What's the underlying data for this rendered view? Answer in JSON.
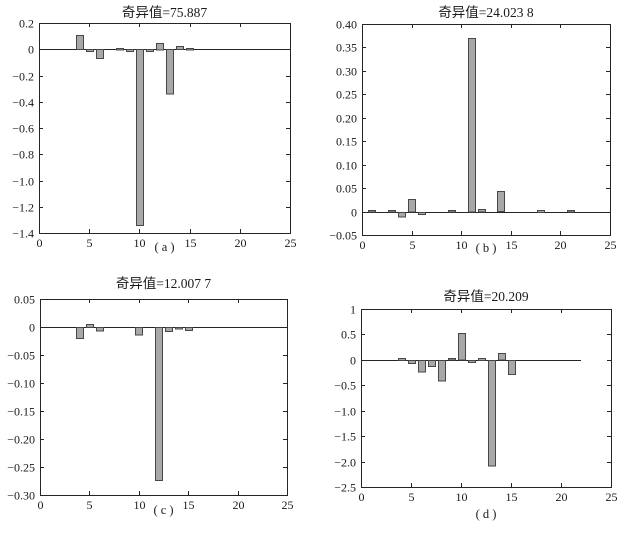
{
  "figure": {
    "kind": "2x2 bar subplot figure",
    "background": "#ffffff",
    "bar_fill": "#a8a8a8",
    "bar_stroke": "#474747",
    "axis_color": "#252525",
    "text_color": "#1a1a1a"
  },
  "chart_data": [
    {
      "id": "a",
      "type": "bar",
      "title": "奇异值=75.887",
      "caption": "( a )",
      "xlim": [
        0,
        25
      ],
      "ylim": [
        -1.4,
        0.2
      ],
      "xticks": [
        0,
        5,
        10,
        15,
        20,
        25
      ],
      "xtick_labels": [
        "0",
        "5",
        "10",
        "15",
        "20",
        "25"
      ],
      "yticks": [
        0.2,
        0,
        -0.2,
        -0.4,
        -0.6,
        -0.8,
        -1.0,
        -1.2,
        -1.4
      ],
      "ytick_labels": [
        "0.2",
        "0",
        "−0.2",
        "−0.4",
        "−0.6",
        "−0.8",
        "−1.0",
        "−1.2",
        "−1.4"
      ],
      "baseline_span": [
        0,
        25
      ],
      "bar_width": 0.7,
      "grid": false,
      "legend": null,
      "bars": [
        {
          "x": 4,
          "y": 0.105
        },
        {
          "x": 5,
          "y": -0.015
        },
        {
          "x": 6,
          "y": -0.07
        },
        {
          "x": 8,
          "y": 0.012
        },
        {
          "x": 9,
          "y": -0.015
        },
        {
          "x": 10,
          "y": -1.34
        },
        {
          "x": 11,
          "y": -0.015
        },
        {
          "x": 12,
          "y": 0.05
        },
        {
          "x": 13,
          "y": -0.34
        },
        {
          "x": 14,
          "y": 0.022
        },
        {
          "x": 15,
          "y": 0.012
        }
      ]
    },
    {
      "id": "b",
      "type": "bar",
      "title": "奇异值=24.023 8",
      "caption": "( b )",
      "xlim": [
        0,
        25
      ],
      "ylim": [
        -0.05,
        0.4
      ],
      "xticks": [
        0,
        5,
        10,
        15,
        20,
        25
      ],
      "xtick_labels": [
        "0",
        "5",
        "10",
        "15",
        "20",
        "25"
      ],
      "yticks": [
        0.4,
        0.35,
        0.3,
        0.25,
        0.2,
        0.15,
        0.1,
        0.05,
        0,
        -0.05
      ],
      "ytick_labels": [
        "0.40",
        "0.35",
        "0.30",
        "0.25",
        "0.20",
        "0.15",
        "0.10",
        "0.05",
        "0",
        "−0.05"
      ],
      "baseline_span": [
        0,
        25
      ],
      "bar_width": 0.7,
      "grid": false,
      "legend": null,
      "bars": [
        {
          "x": 1,
          "y": 0.003
        },
        {
          "x": 3,
          "y": 0.003
        },
        {
          "x": 4,
          "y": -0.01
        },
        {
          "x": 5,
          "y": 0.027
        },
        {
          "x": 6,
          "y": -0.004
        },
        {
          "x": 9,
          "y": 0.003
        },
        {
          "x": 11,
          "y": 0.37
        },
        {
          "x": 12,
          "y": 0.005
        },
        {
          "x": 14,
          "y": 0.043
        },
        {
          "x": 18,
          "y": 0.004
        },
        {
          "x": 21,
          "y": 0.003
        }
      ]
    },
    {
      "id": "c",
      "type": "bar",
      "title": "奇异值=12.007 7",
      "caption": "( c )",
      "xlim": [
        0,
        25
      ],
      "ylim": [
        -0.3,
        0.05
      ],
      "xticks": [
        0,
        5,
        10,
        15,
        20,
        25
      ],
      "xtick_labels": [
        "0",
        "5",
        "10",
        "15",
        "20",
        "25"
      ],
      "yticks": [
        0.05,
        0,
        -0.05,
        -0.1,
        -0.15,
        -0.2,
        -0.25,
        -0.3
      ],
      "ytick_labels": [
        "0.05",
        "0",
        "−0.05",
        "−0.10",
        "−0.15",
        "−0.20",
        "−0.25",
        "−0.30"
      ],
      "baseline_span": [
        0,
        25
      ],
      "bar_width": 0.7,
      "grid": false,
      "legend": null,
      "bars": [
        {
          "x": 4,
          "y": -0.02
        },
        {
          "x": 5,
          "y": 0.005
        },
        {
          "x": 6,
          "y": -0.006
        },
        {
          "x": 10,
          "y": -0.013
        },
        {
          "x": 12,
          "y": -0.273
        },
        {
          "x": 13,
          "y": -0.007
        },
        {
          "x": 14,
          "y": -0.003
        },
        {
          "x": 15,
          "y": -0.005
        }
      ]
    },
    {
      "id": "d",
      "type": "bar",
      "title": "奇异值=20.209",
      "caption": "( d )",
      "xlim": [
        0,
        25
      ],
      "ylim": [
        -2.5,
        1
      ],
      "xticks": [
        0,
        5,
        10,
        15,
        20,
        25
      ],
      "xtick_labels": [
        "0",
        "5",
        "10",
        "15",
        "20",
        "25"
      ],
      "yticks": [
        1,
        0.5,
        0,
        -0.5,
        -1.0,
        -1.5,
        -2.0,
        -2.5
      ],
      "ytick_labels": [
        "1",
        "0.5",
        "0",
        "−0.5",
        "−1.0",
        "−1.5",
        "−2.0",
        "−2.5"
      ],
      "baseline_span": [
        0,
        22
      ],
      "bar_width": 0.7,
      "grid": false,
      "legend": null,
      "bars": [
        {
          "x": 4,
          "y": 0.04
        },
        {
          "x": 5,
          "y": -0.06
        },
        {
          "x": 6,
          "y": -0.23
        },
        {
          "x": 7,
          "y": -0.12
        },
        {
          "x": 8,
          "y": -0.4
        },
        {
          "x": 9,
          "y": 0.03
        },
        {
          "x": 10,
          "y": 0.52
        },
        {
          "x": 11,
          "y": -0.04
        },
        {
          "x": 12,
          "y": 0.04
        },
        {
          "x": 13,
          "y": -2.07
        },
        {
          "x": 14,
          "y": 0.13
        },
        {
          "x": 15,
          "y": -0.28
        }
      ]
    }
  ]
}
